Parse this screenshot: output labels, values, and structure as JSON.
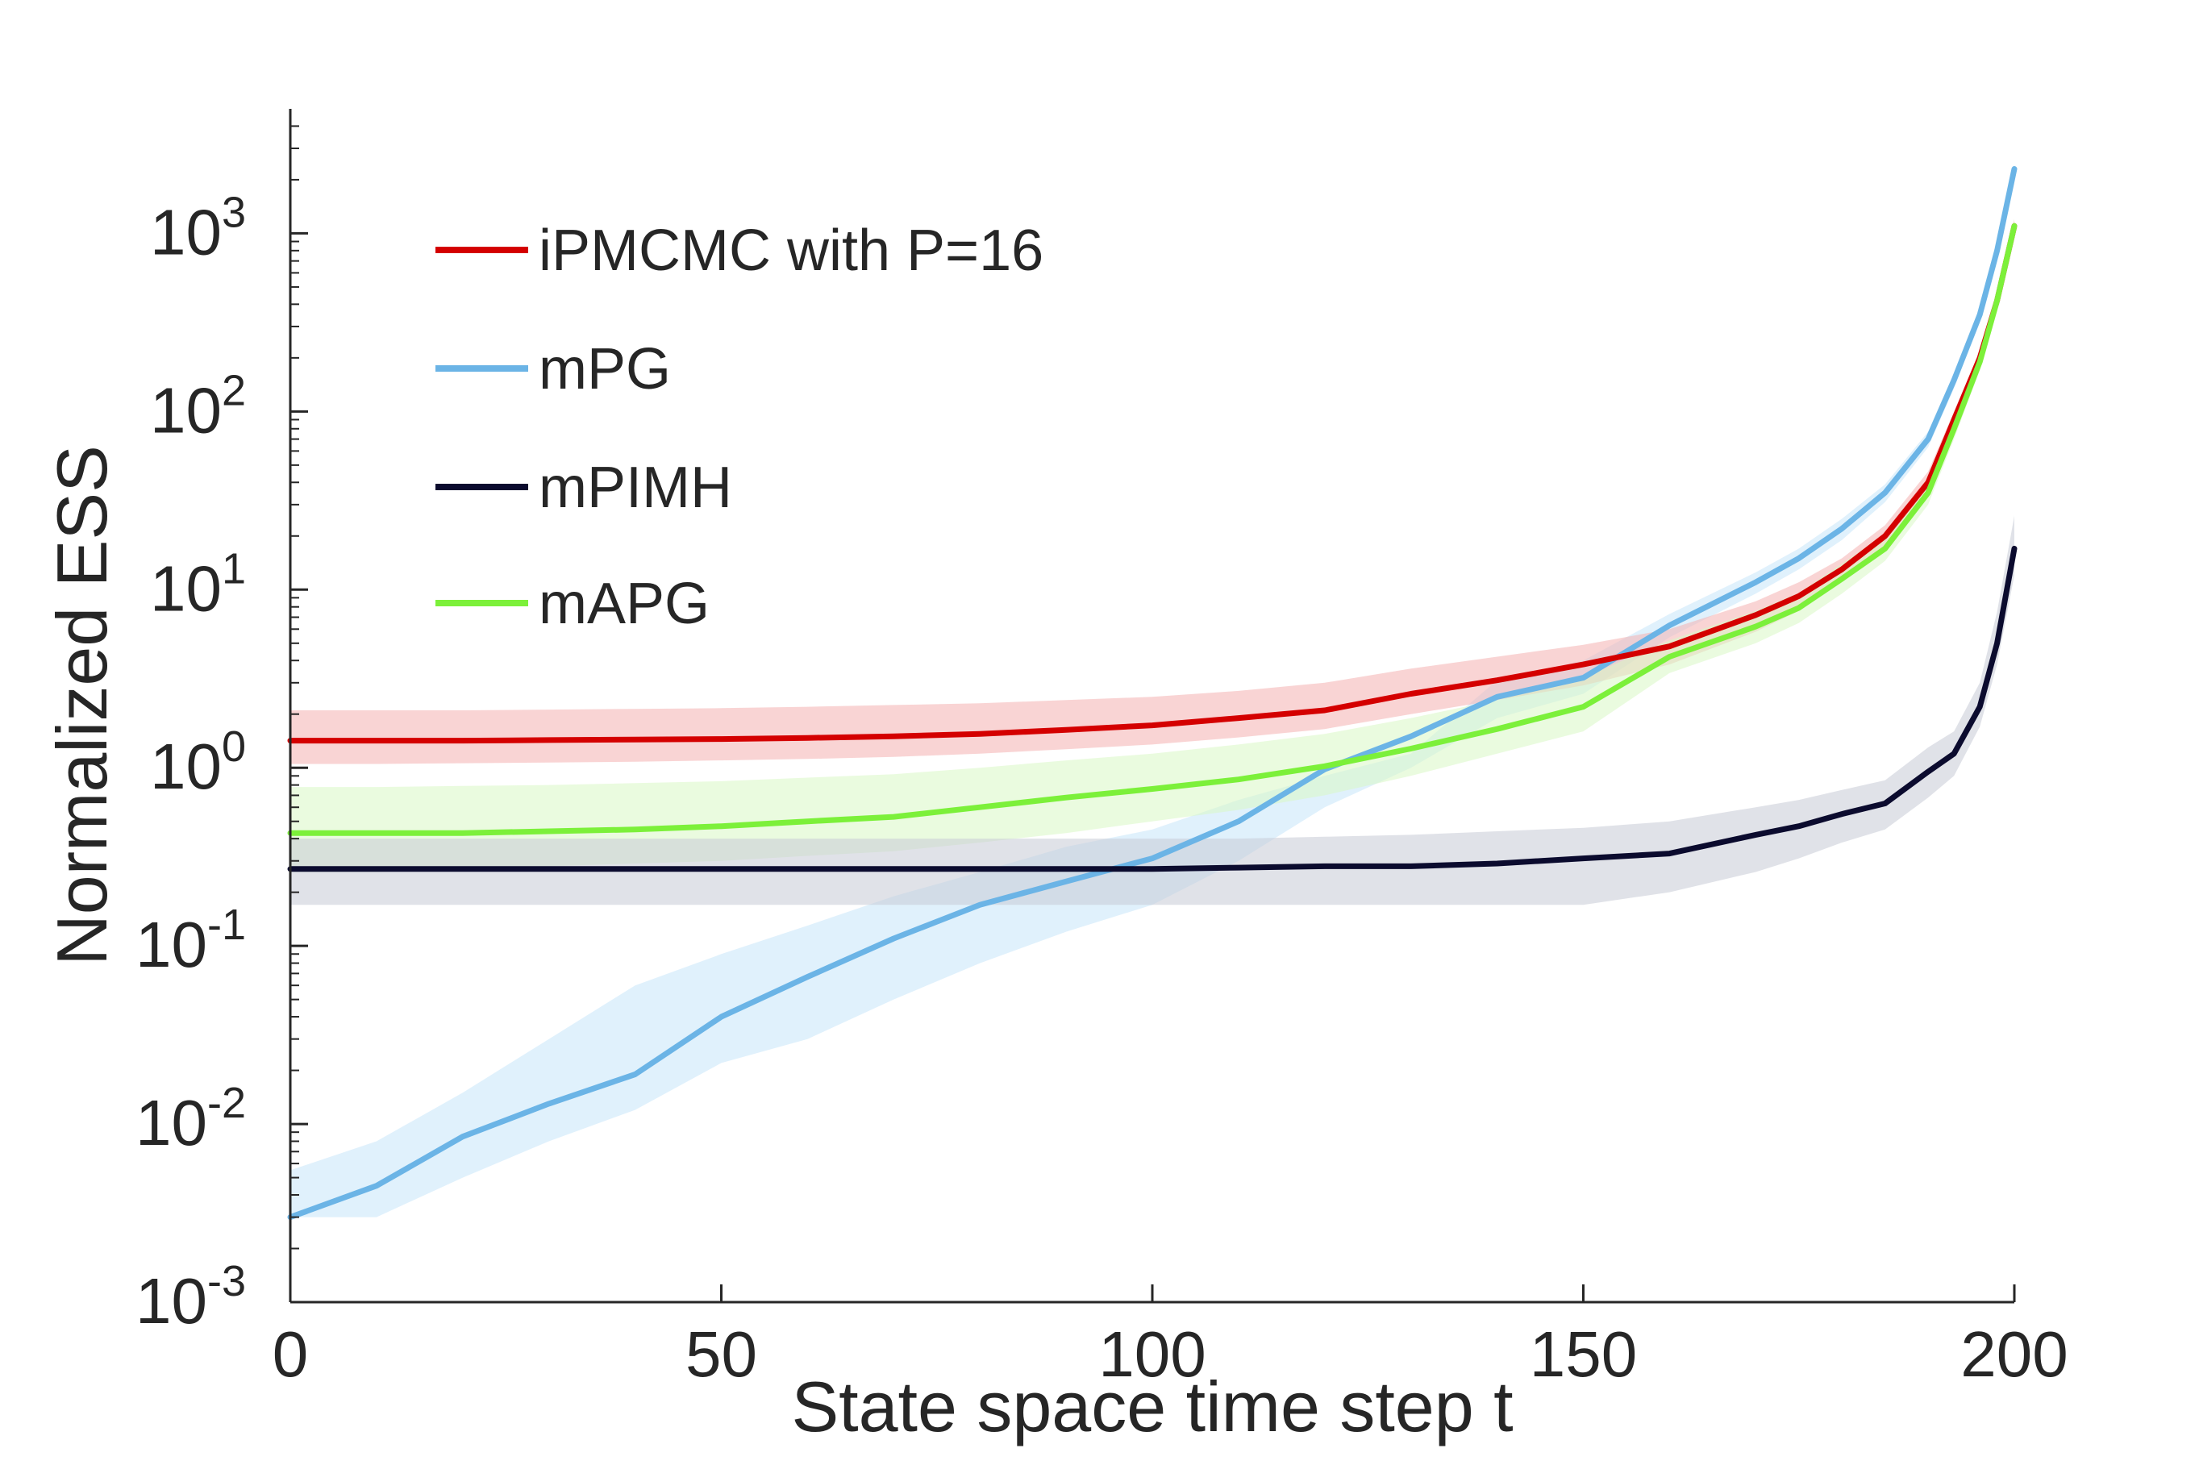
{
  "chart_data": {
    "type": "line",
    "xlabel": "State space time step t",
    "ylabel": "Normalized ESS",
    "xlim": [
      0,
      200
    ],
    "ylim": [
      0.001,
      5000
    ],
    "yscale": "log",
    "xticks": [
      0,
      50,
      100,
      150,
      200
    ],
    "xtick_labels": [
      "0",
      "50",
      "100",
      "150",
      "200"
    ],
    "yticks": [
      0.001,
      0.01,
      0.1,
      1,
      10,
      100,
      1000
    ],
    "ytick_labels": [
      {
        "base": "10",
        "exp": "-3"
      },
      {
        "base": "10",
        "exp": "-2"
      },
      {
        "base": "10",
        "exp": "-1"
      },
      {
        "base": "10",
        "exp": "0"
      },
      {
        "base": "10",
        "exp": "1"
      },
      {
        "base": "10",
        "exp": "2"
      },
      {
        "base": "10",
        "exp": "3"
      }
    ],
    "grid": false,
    "legend_position": "top-left",
    "x": [
      0,
      10,
      20,
      30,
      40,
      50,
      60,
      70,
      80,
      90,
      100,
      110,
      120,
      130,
      140,
      150,
      160,
      170,
      175,
      180,
      185,
      190,
      193,
      196,
      198,
      200
    ],
    "series": [
      {
        "name": "iPMCMC with P=16",
        "color": "#d40000",
        "band_color": "#f4b0b0",
        "values": [
          1.42,
          1.42,
          1.42,
          1.43,
          1.44,
          1.45,
          1.47,
          1.5,
          1.55,
          1.63,
          1.73,
          1.9,
          2.1,
          2.6,
          3.1,
          3.8,
          4.8,
          7.2,
          9.2,
          13,
          20,
          40,
          90,
          200,
          420,
          1100
        ],
        "lower": [
          1.05,
          1.05,
          1.06,
          1.07,
          1.08,
          1.1,
          1.12,
          1.15,
          1.2,
          1.27,
          1.35,
          1.48,
          1.65,
          2.0,
          2.4,
          2.9,
          3.8,
          5.8,
          7.6,
          11,
          17,
          35,
          80,
          180,
          380,
          1000
        ],
        "upper": [
          2.1,
          2.1,
          2.1,
          2.12,
          2.14,
          2.16,
          2.2,
          2.25,
          2.3,
          2.4,
          2.5,
          2.7,
          3.0,
          3.6,
          4.2,
          4.9,
          6.0,
          8.6,
          11,
          15,
          23,
          46,
          100,
          220,
          460,
          1200
        ]
      },
      {
        "name": "mPG",
        "color": "#6bb4e6",
        "band_color": "#c7e5fa",
        "values": [
          0.003,
          0.0045,
          0.0085,
          0.013,
          0.019,
          0.04,
          0.067,
          0.11,
          0.17,
          0.23,
          0.31,
          0.5,
          0.98,
          1.5,
          2.5,
          3.2,
          6.3,
          11,
          15,
          22,
          35,
          70,
          150,
          350,
          800,
          2300
        ],
        "lower": [
          0.003,
          0.003,
          0.005,
          0.008,
          0.012,
          0.022,
          0.03,
          0.05,
          0.08,
          0.12,
          0.17,
          0.3,
          0.6,
          1.0,
          1.9,
          2.6,
          5.4,
          9.5,
          13,
          19,
          31,
          63,
          135,
          320,
          750,
          2200
        ],
        "upper": [
          0.0055,
          0.008,
          0.015,
          0.03,
          0.06,
          0.09,
          0.13,
          0.19,
          0.26,
          0.36,
          0.45,
          0.66,
          0.9,
          1.2,
          3.1,
          4.0,
          7.3,
          12.5,
          17,
          25,
          39,
          77,
          165,
          380,
          850,
          2400
        ]
      },
      {
        "name": "mPIMH",
        "color": "#0b0b2e",
        "band_color": "#c7cad6",
        "values": [
          0.27,
          0.27,
          0.27,
          0.27,
          0.27,
          0.27,
          0.27,
          0.27,
          0.27,
          0.27,
          0.27,
          0.275,
          0.28,
          0.28,
          0.29,
          0.31,
          0.33,
          0.42,
          0.47,
          0.55,
          0.63,
          0.95,
          1.2,
          2.2,
          5,
          17
        ],
        "lower": [
          0.17,
          0.17,
          0.17,
          0.17,
          0.17,
          0.17,
          0.17,
          0.17,
          0.17,
          0.17,
          0.17,
          0.17,
          0.17,
          0.17,
          0.17,
          0.17,
          0.2,
          0.26,
          0.31,
          0.38,
          0.45,
          0.68,
          0.9,
          1.7,
          3.8,
          12
        ],
        "upper": [
          0.4,
          0.4,
          0.4,
          0.4,
          0.4,
          0.4,
          0.4,
          0.4,
          0.4,
          0.4,
          0.4,
          0.4,
          0.41,
          0.42,
          0.44,
          0.46,
          0.5,
          0.6,
          0.66,
          0.75,
          0.85,
          1.3,
          1.6,
          3.0,
          7.5,
          26
        ]
      },
      {
        "name": "mAPG",
        "color": "#7cf03a",
        "band_color": "#d9f7c4",
        "values": [
          0.43,
          0.43,
          0.43,
          0.44,
          0.45,
          0.47,
          0.5,
          0.53,
          0.6,
          0.68,
          0.76,
          0.86,
          1.02,
          1.28,
          1.65,
          2.2,
          4.2,
          6.2,
          7.9,
          11.5,
          17,
          35,
          80,
          190,
          420,
          1100
        ],
        "lower": [
          0.26,
          0.26,
          0.27,
          0.28,
          0.29,
          0.3,
          0.32,
          0.34,
          0.38,
          0.43,
          0.5,
          0.58,
          0.7,
          0.9,
          1.2,
          1.6,
          3.4,
          5.0,
          6.5,
          9.5,
          14.5,
          30,
          70,
          170,
          380,
          1000
        ],
        "upper": [
          0.78,
          0.78,
          0.79,
          0.8,
          0.82,
          0.84,
          0.88,
          0.92,
          1.0,
          1.1,
          1.2,
          1.35,
          1.55,
          1.9,
          2.4,
          3.2,
          5.2,
          7.6,
          9.6,
          14,
          20.5,
          41,
          92,
          215,
          470,
          1200
        ]
      }
    ]
  }
}
